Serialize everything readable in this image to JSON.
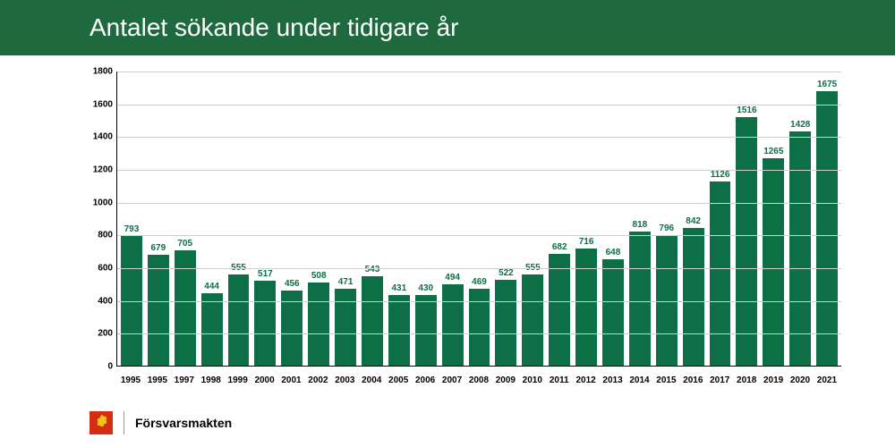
{
  "header": {
    "title": "Antalet sökande under tidigare år",
    "bg_color": "#1e6a3e"
  },
  "chart": {
    "type": "bar",
    "categories": [
      "1995",
      "1995",
      "1997",
      "1998",
      "1999",
      "2000",
      "2001",
      "2002",
      "2003",
      "2004",
      "2005",
      "2006",
      "2007",
      "2008",
      "2009",
      "2010",
      "2011",
      "2012",
      "2013",
      "2014",
      "2015",
      "2016",
      "2017",
      "2018",
      "2019",
      "2020",
      "2021"
    ],
    "values": [
      793,
      679,
      705,
      444,
      555,
      517,
      456,
      508,
      471,
      543,
      431,
      430,
      494,
      469,
      522,
      555,
      682,
      716,
      648,
      818,
      796,
      842,
      1126,
      1516,
      1265,
      1428,
      1675
    ],
    "bar_color": "#0d6f45",
    "value_label_color": "#0d6f45",
    "ylim": [
      0,
      1800
    ],
    "ytick_step": 200,
    "grid_color": "#cfcfcf",
    "axis_color": "#000000",
    "label_fontsize": 10,
    "background_color": "#ffffff"
  },
  "footer": {
    "brand": "Försvarsmakten",
    "logo_bg": "#d42e12",
    "logo_fg": "#f0c419"
  }
}
